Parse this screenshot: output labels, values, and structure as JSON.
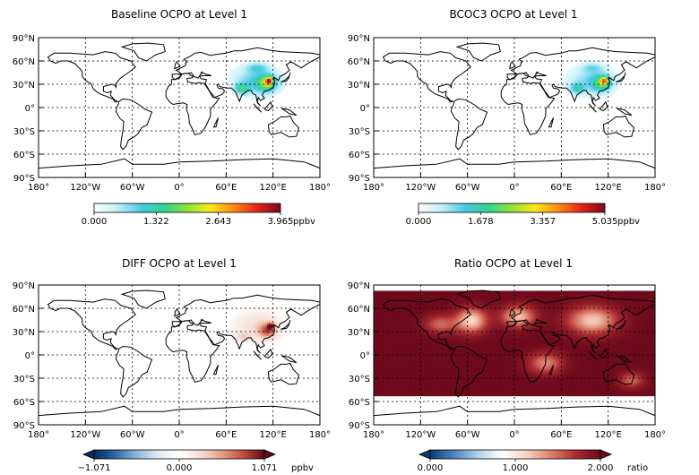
{
  "panels": [
    {
      "id": "baseline",
      "title": "Baseline OCPO at Level 1",
      "colorbar": {
        "ticks": [
          "0.000",
          "1.322",
          "2.643",
          "3.965"
        ],
        "unit": "ppbv",
        "scale": "sequential"
      },
      "field": "concentration"
    },
    {
      "id": "bcoc3",
      "title": "BCOC3 OCPO at Level 1",
      "colorbar": {
        "ticks": [
          "0.000",
          "1.678",
          "3.357",
          "5.035"
        ],
        "unit": "ppbv",
        "scale": "sequential"
      },
      "field": "concentration"
    },
    {
      "id": "diff",
      "title": "DIFF OCPO at Level 1",
      "colorbar": {
        "ticks": [
          "−1.071",
          "0.000",
          "1.071"
        ],
        "unit": "ppbv",
        "scale": "diverging"
      },
      "field": "difference"
    },
    {
      "id": "ratio",
      "title": "Ratio OCPO at Level 1",
      "colorbar": {
        "ticks": [
          "0.000",
          "1.000",
          "2.000"
        ],
        "unit": "ratio",
        "scale": "diverging"
      },
      "field": "ratio"
    }
  ],
  "axes": {
    "lat_ticks": [
      "90°N",
      "60°N",
      "30°N",
      "0°",
      "30°S",
      "60°S",
      "90°S"
    ],
    "lon_ticks": [
      "180°",
      "120°W",
      "60°W",
      "0°",
      "60°E",
      "120°E",
      "180°"
    ]
  },
  "colors": {
    "sequential": [
      "#ffffff",
      "#bff0f8",
      "#49c8e6",
      "#2fd58f",
      "#8fe13a",
      "#ffe81a",
      "#ff8a12",
      "#e2231c",
      "#7e0a18"
    ],
    "diverging_diff": [
      "#052a5c",
      "#2f66a8",
      "#8cb7dc",
      "#dfe9f4",
      "#ffffff",
      "#f6ddd4",
      "#e3a188",
      "#c34b3f",
      "#5e0a18"
    ],
    "diverging_ratio": [
      "#0e3b74",
      "#4d86be",
      "#b7d2ea",
      "#ffffff",
      "#f7d0c2",
      "#dc7e66",
      "#a92a31",
      "#6d0a1c"
    ],
    "coast": "#000000",
    "grid": "#000000"
  }
}
